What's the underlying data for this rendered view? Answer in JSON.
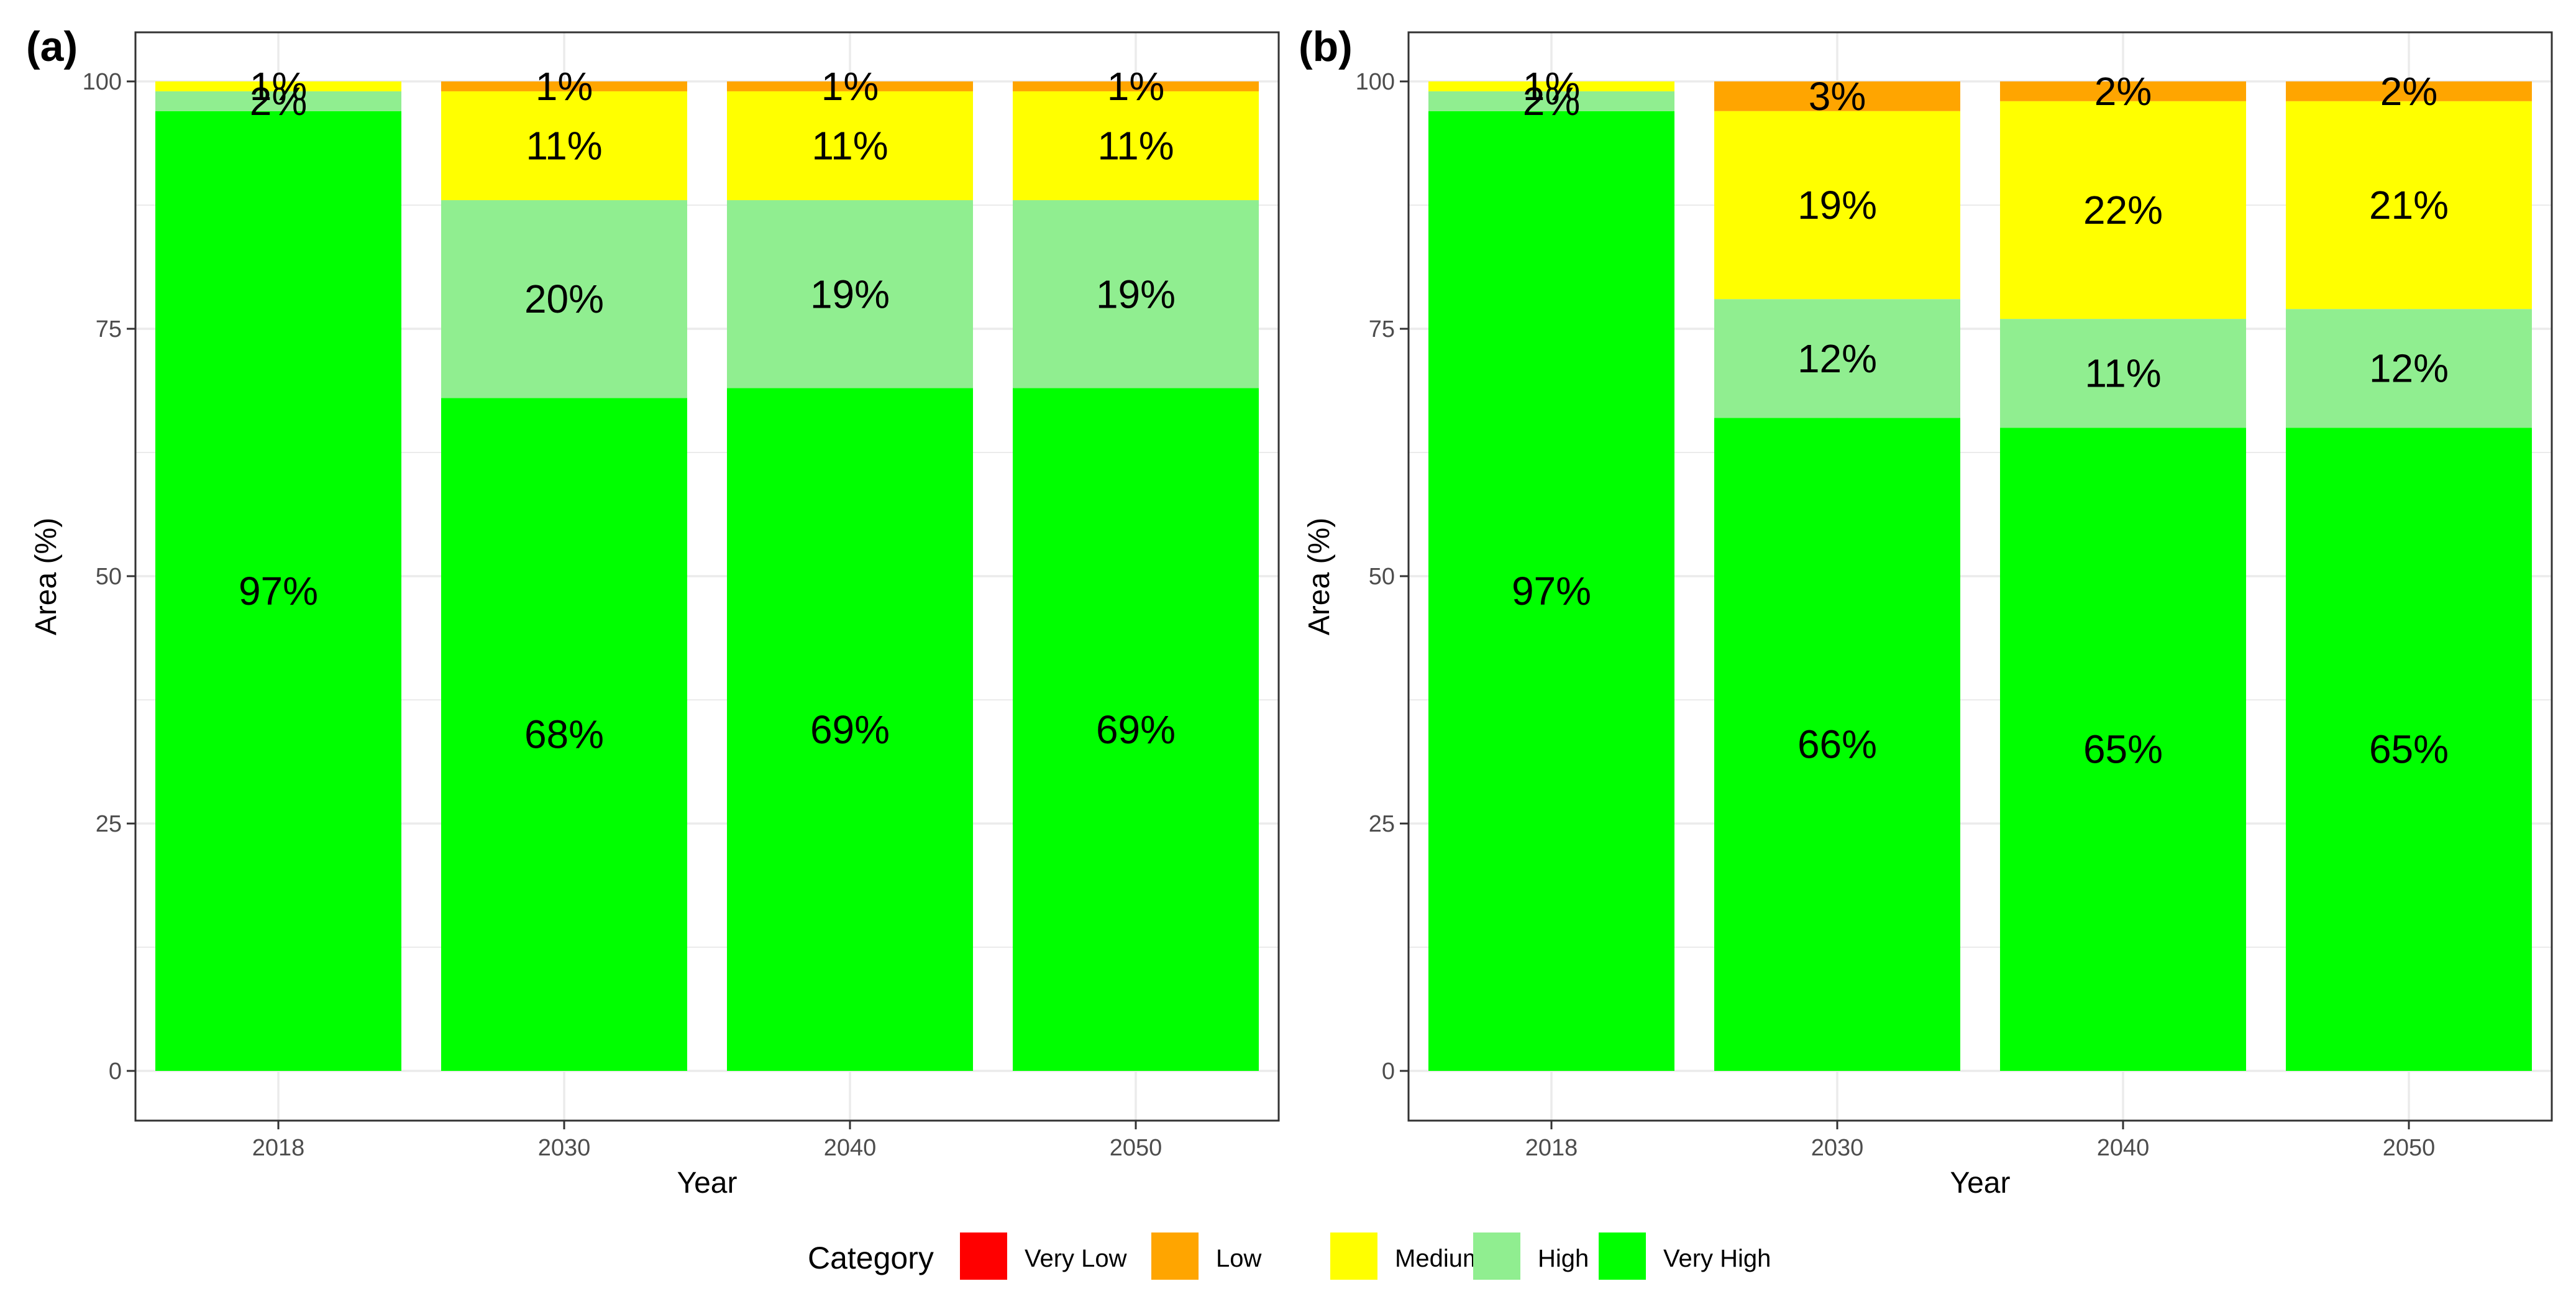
{
  "categories_order": [
    "Very Low",
    "Low",
    "Medium",
    "High",
    "Very High"
  ],
  "colors": {
    "Very Low": "#ff0000",
    "Low": "#ffa500",
    "Medium": "#ffff00",
    "High": "#90ee90",
    "Very High": "#00ff00",
    "grid": "#ebebeb",
    "panel_border": "#333333"
  },
  "legend": {
    "title": "Category",
    "items": [
      "Very Low",
      "Low",
      "Medium",
      "High",
      "Very High"
    ]
  },
  "chart_data": [
    {
      "panel": "(a)",
      "type": "bar",
      "stacked": true,
      "categories": [
        "2018",
        "2030",
        "2040",
        "2050"
      ],
      "series": [
        {
          "name": "Very Low",
          "values": [
            0,
            0,
            0,
            0
          ]
        },
        {
          "name": "Low",
          "values": [
            0,
            1,
            1,
            1
          ]
        },
        {
          "name": "Medium",
          "values": [
            1,
            11,
            11,
            11
          ]
        },
        {
          "name": "High",
          "values": [
            2,
            20,
            19,
            19
          ]
        },
        {
          "name": "Very High",
          "values": [
            97,
            68,
            69,
            69
          ]
        }
      ],
      "xlabel": "Year",
      "ylabel": "Area (%)",
      "ylim": [
        0,
        100
      ],
      "yticks": [
        0,
        25,
        50,
        75,
        100
      ],
      "labels": [
        {
          "year": "2018",
          "category": "Very High",
          "text": "97%"
        },
        {
          "year": "2018",
          "category": "High",
          "text": "2%"
        },
        {
          "year": "2018",
          "category": "Medium",
          "text": "1%"
        },
        {
          "year": "2030",
          "category": "Very High",
          "text": "68%"
        },
        {
          "year": "2030",
          "category": "High",
          "text": "20%"
        },
        {
          "year": "2030",
          "category": "Medium",
          "text": "11%"
        },
        {
          "year": "2030",
          "category": "Low",
          "text": "1%"
        },
        {
          "year": "2040",
          "category": "Very High",
          "text": "69%"
        },
        {
          "year": "2040",
          "category": "High",
          "text": "19%"
        },
        {
          "year": "2040",
          "category": "Medium",
          "text": "11%"
        },
        {
          "year": "2040",
          "category": "Low",
          "text": "1%"
        },
        {
          "year": "2050",
          "category": "Very High",
          "text": "69%"
        },
        {
          "year": "2050",
          "category": "High",
          "text": "19%"
        },
        {
          "year": "2050",
          "category": "Medium",
          "text": "11%"
        },
        {
          "year": "2050",
          "category": "Low",
          "text": "1%"
        }
      ]
    },
    {
      "panel": "(b)",
      "type": "bar",
      "stacked": true,
      "categories": [
        "2018",
        "2030",
        "2040",
        "2050"
      ],
      "series": [
        {
          "name": "Very Low",
          "values": [
            0,
            0,
            0,
            0
          ]
        },
        {
          "name": "Low",
          "values": [
            0,
            3,
            2,
            2
          ]
        },
        {
          "name": "Medium",
          "values": [
            1,
            19,
            22,
            21
          ]
        },
        {
          "name": "High",
          "values": [
            2,
            12,
            11,
            12
          ]
        },
        {
          "name": "Very High",
          "values": [
            97,
            66,
            65,
            65
          ]
        }
      ],
      "xlabel": "Year",
      "ylabel": "Area (%)",
      "ylim": [
        0,
        100
      ],
      "yticks": [
        0,
        25,
        50,
        75,
        100
      ],
      "labels": [
        {
          "year": "2018",
          "category": "Very High",
          "text": "97%"
        },
        {
          "year": "2018",
          "category": "High",
          "text": "2%"
        },
        {
          "year": "2018",
          "category": "Medium",
          "text": "1%"
        },
        {
          "year": "2030",
          "category": "Very High",
          "text": "66%"
        },
        {
          "year": "2030",
          "category": "High",
          "text": "12%"
        },
        {
          "year": "2030",
          "category": "Medium",
          "text": "19%"
        },
        {
          "year": "2030",
          "category": "Low",
          "text": "3%"
        },
        {
          "year": "2040",
          "category": "Very High",
          "text": "65%"
        },
        {
          "year": "2040",
          "category": "High",
          "text": "11%"
        },
        {
          "year": "2040",
          "category": "Medium",
          "text": "22%"
        },
        {
          "year": "2040",
          "category": "Low",
          "text": "2%"
        },
        {
          "year": "2050",
          "category": "Very High",
          "text": "65%"
        },
        {
          "year": "2050",
          "category": "High",
          "text": "12%"
        },
        {
          "year": "2050",
          "category": "Medium",
          "text": "21%"
        },
        {
          "year": "2050",
          "category": "Low",
          "text": "2%"
        }
      ]
    }
  ]
}
